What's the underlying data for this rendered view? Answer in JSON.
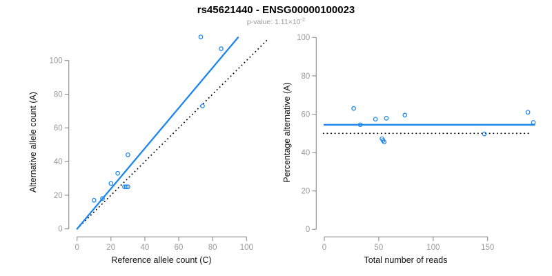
{
  "title": "rs45621440 - ENSG00000100023",
  "subtitle": {
    "base": "p-value: 1.11×10",
    "exponent": "-2"
  },
  "colors": {
    "accent_blue": "#1C86EE",
    "reference_black": "#000000",
    "axis_gray": "#8b8b8b",
    "tick_label_gray": "#9a9a9a"
  },
  "chart_data": [
    {
      "type": "scatter",
      "name": "allele-count-scatter",
      "xlabel": "Reference allele count (C)",
      "ylabel": "Alternative allele count (A)",
      "xlim": [
        0,
        100
      ],
      "ylim": [
        0,
        115
      ],
      "xticks": [
        0,
        20,
        40,
        60,
        80,
        100
      ],
      "yticks": [
        0,
        20,
        40,
        60,
        80,
        100
      ],
      "points": [
        [
          10,
          17
        ],
        [
          15,
          18
        ],
        [
          20,
          27
        ],
        [
          24,
          33
        ],
        [
          28,
          25
        ],
        [
          29,
          25
        ],
        [
          30,
          25
        ],
        [
          30,
          44
        ],
        [
          73,
          114
        ],
        [
          74,
          73
        ],
        [
          85,
          107
        ]
      ],
      "fit_line": {
        "x1": 0,
        "y1": 0,
        "x2": 95,
        "y2": 113.7,
        "style": "solid"
      },
      "identity_line": {
        "x1": 1.5,
        "y1": 1.5,
        "x2": 112.5,
        "y2": 112.5,
        "style": "dotted"
      },
      "legend_position": "none",
      "grid": false
    },
    {
      "type": "scatter",
      "name": "percentage-vs-reads-scatter",
      "xlabel": "Total number of reads",
      "ylabel": "Percentage alternative (A)",
      "xlim": [
        0,
        195
      ],
      "ylim": [
        0,
        100
      ],
      "xticks": [
        0,
        50,
        100,
        150
      ],
      "yticks": [
        0,
        20,
        40,
        60,
        80,
        100
      ],
      "points": [
        [
          27,
          63.0
        ],
        [
          33,
          54.5
        ],
        [
          47,
          57.4
        ],
        [
          53,
          47.2
        ],
        [
          54,
          46.3
        ],
        [
          55,
          45.5
        ],
        [
          57,
          57.9
        ],
        [
          74,
          59.5
        ],
        [
          147,
          49.7
        ],
        [
          187,
          61.0
        ],
        [
          192,
          55.7
        ]
      ],
      "mean_line": {
        "y": 54.5,
        "x1": 0,
        "x2": 193,
        "style": "solid"
      },
      "reference_line": {
        "y": 50,
        "x1": -1.3,
        "x2": 188,
        "style": "dotted"
      },
      "legend_position": "none",
      "grid": false
    }
  ]
}
